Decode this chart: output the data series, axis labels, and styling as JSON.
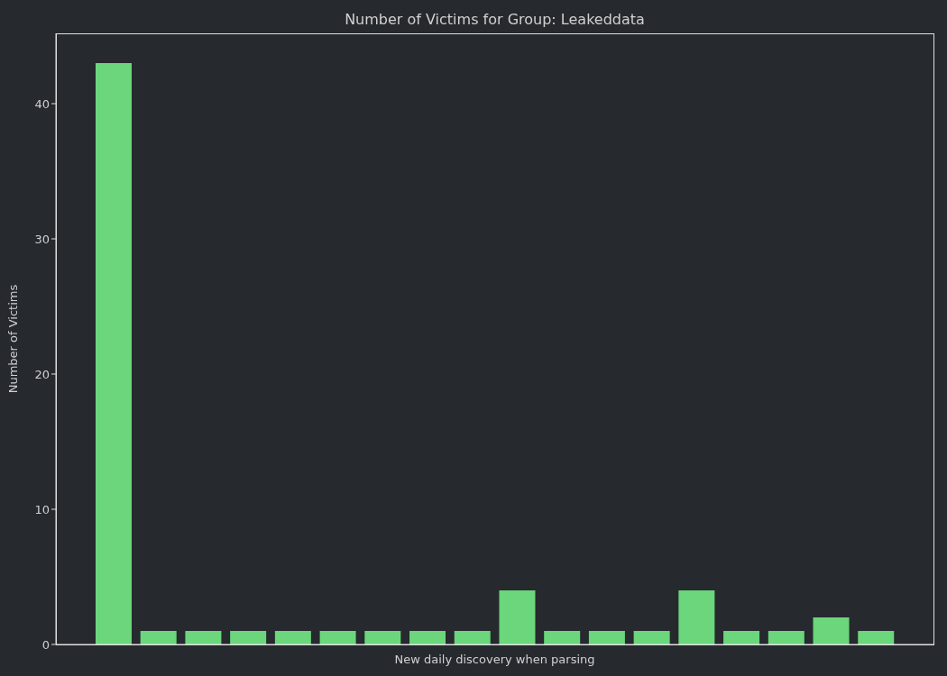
{
  "chart_data": {
    "type": "bar",
    "title": "Number of Victims for Group: Leakeddata",
    "xlabel": "New daily discovery when parsing",
    "ylabel": "Number of Victims",
    "categories": [
      null,
      null,
      null,
      null,
      null,
      null,
      null,
      null,
      null,
      null,
      null,
      null,
      null,
      null,
      null,
      null,
      null,
      null
    ],
    "values": [
      43,
      1,
      1,
      1,
      1,
      1,
      1,
      1,
      1,
      4,
      1,
      1,
      1,
      4,
      1,
      1,
      2,
      1
    ],
    "color": "#6bd67b",
    "ylim": [
      0,
      45.2
    ],
    "yticks": [
      0,
      10,
      20,
      30,
      40
    ]
  }
}
